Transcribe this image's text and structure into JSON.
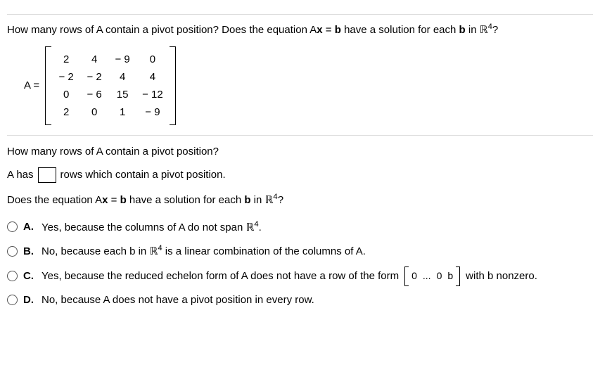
{
  "question_main_a": "How many rows of A contain a pivot position? Does the equation A",
  "question_main_b": " have a solution for each ",
  "question_main_c": " in ",
  "question_main_end": "?",
  "xvar": "x",
  "bvar": "b",
  "eq": " = ",
  "R4_base": "ℝ",
  "R4_exp": "4",
  "matrix_label": "A =",
  "matrix": {
    "rows": [
      [
        "2",
        "4",
        "− 9",
        "0"
      ],
      [
        "− 2",
        "− 2",
        "4",
        "4"
      ],
      [
        "0",
        "− 6",
        "15",
        "− 12"
      ],
      [
        "2",
        "0",
        "1",
        "− 9"
      ]
    ]
  },
  "sub_q1": "How many rows of A contain a pivot position?",
  "fill_pre": "A has",
  "fill_post": "rows which contain a pivot position.",
  "sub_q2_a": "Does the equation A",
  "sub_q2_b": " have a solution for each ",
  "sub_q2_c": " in ",
  "sub_q2_end": "?",
  "choices": {
    "A": {
      "letter": "A.",
      "pre": "Yes, because the columns of A do not span ",
      "r4": true,
      "post": "."
    },
    "B": {
      "letter": "B.",
      "pre": "No, because each b in ",
      "r4": true,
      "post": " is a linear combination of the columns of A."
    },
    "C": {
      "letter": "C.",
      "pre": "Yes, because the reduced echelon form of A does not have a row of the form",
      "bracket": [
        "0",
        "...",
        "0",
        "b"
      ],
      "post": "with b nonzero."
    },
    "D": {
      "letter": "D.",
      "pre": "No, because A does not have a pivot position in every row."
    }
  }
}
